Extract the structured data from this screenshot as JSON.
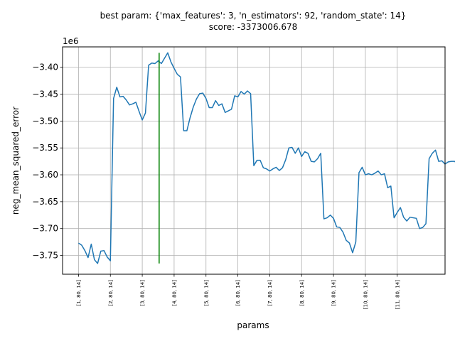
{
  "chart_data": {
    "type": "line",
    "title_line1": "best param: {'max_features': 3, 'n_estimators': 92, 'random_state': 14}",
    "title_line2": "score: -3373006.678",
    "xlabel": "params",
    "ylabel": "neg_mean_squared_error",
    "y_offset_label": "1e6",
    "y_scale": 1000000,
    "grid": true,
    "ylim": [
      -3.785,
      -3.362
    ],
    "y_ticks": [
      -3.75,
      -3.7,
      -3.65,
      -3.6,
      -3.55,
      -3.5,
      -3.45,
      -3.4
    ],
    "y_tick_labels": [
      "−3.75",
      "−3.70",
      "−3.65",
      "−3.60",
      "−3.55",
      "−3.50",
      "−3.45",
      "−3.40"
    ],
    "xlim": [
      -5,
      115
    ],
    "x_ticks": [
      0,
      10,
      20,
      30,
      40,
      50,
      60,
      70,
      80,
      90,
      100
    ],
    "x_tick_labels": [
      "[1, 80, 14]",
      "[2, 80, 14]",
      "[3, 80, 14]",
      "[4, 80, 14]",
      "[5, 80, 14]",
      "[6, 80, 14]",
      "[7, 80, 14]",
      "[8, 80, 14]",
      "[9, 80, 14]",
      "[10, 80, 14]",
      "[11, 80, 14]"
    ],
    "series": [
      {
        "color": "#1f77b4",
        "values": [
          -3.727,
          -3.731,
          -3.741,
          -3.754,
          -3.729,
          -3.758,
          -3.765,
          -3.742,
          -3.741,
          -3.753,
          -3.76,
          -3.458,
          -3.437,
          -3.455,
          -3.454,
          -3.461,
          -3.47,
          -3.468,
          -3.465,
          -3.482,
          -3.498,
          -3.485,
          -3.396,
          -3.392,
          -3.393,
          -3.388,
          -3.393,
          -3.383,
          -3.373,
          -3.39,
          -3.402,
          -3.413,
          -3.418,
          -3.518,
          -3.518,
          -3.494,
          -3.474,
          -3.459,
          -3.449,
          -3.448,
          -3.458,
          -3.475,
          -3.475,
          -3.462,
          -3.471,
          -3.468,
          -3.484,
          -3.481,
          -3.478,
          -3.453,
          -3.455,
          -3.445,
          -3.45,
          -3.444,
          -3.449,
          -3.583,
          -3.573,
          -3.573,
          -3.587,
          -3.589,
          -3.593,
          -3.589,
          -3.586,
          -3.592,
          -3.587,
          -3.572,
          -3.55,
          -3.549,
          -3.56,
          -3.55,
          -3.566,
          -3.557,
          -3.56,
          -3.575,
          -3.576,
          -3.57,
          -3.56,
          -3.682,
          -3.68,
          -3.675,
          -3.681,
          -3.697,
          -3.698,
          -3.707,
          -3.722,
          -3.727,
          -3.745,
          -3.725,
          -3.596,
          -3.586,
          -3.6,
          -3.598,
          -3.6,
          -3.597,
          -3.593,
          -3.6,
          -3.598,
          -3.624,
          -3.621,
          -3.68,
          -3.67,
          -3.661,
          -3.679,
          -3.686,
          -3.679,
          -3.68,
          -3.681,
          -3.7,
          -3.698,
          -3.691,
          -3.57,
          -3.56,
          -3.554,
          -3.575,
          -3.574,
          -3.58,
          -3.576,
          -3.575,
          -3.575,
          -3.581,
          -3.576
        ]
      }
    ],
    "best_marker": {
      "color": "#008000",
      "x": 25.3,
      "y_from": -3.765,
      "y_to": -3.373
    }
  }
}
